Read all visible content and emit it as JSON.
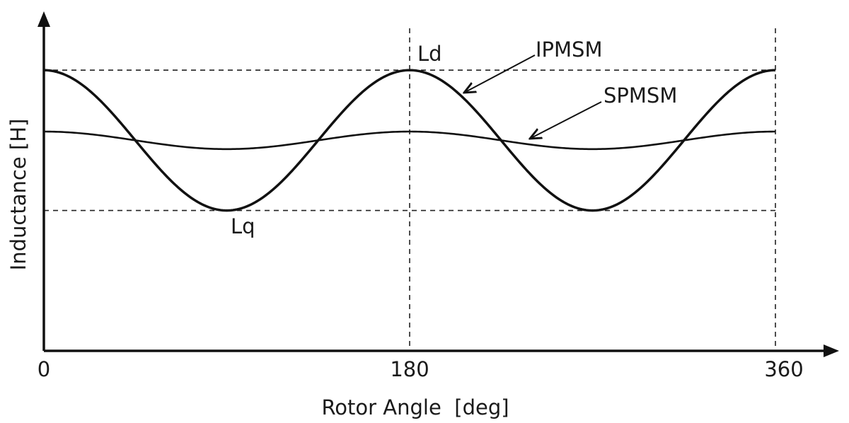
{
  "chart_data": {
    "type": "line",
    "title": "",
    "xlabel": "Rotor Angle  [deg]",
    "ylabel": "Inductance [H]",
    "xlim": [
      0,
      360
    ],
    "ylim": [
      0,
      1
    ],
    "xticks": [
      "0",
      "180",
      "360"
    ],
    "yticks": [],
    "grid": false,
    "series": [
      {
        "name": "IPMSM",
        "x": [
          0,
          15,
          30,
          45,
          60,
          75,
          90,
          105,
          120,
          135,
          150,
          165,
          180,
          195,
          210,
          225,
          240,
          255,
          270,
          285,
          300,
          315,
          330,
          345,
          360
        ],
        "values": [
          0.8,
          0.773,
          0.7,
          0.6,
          0.5,
          0.427,
          0.4,
          0.427,
          0.5,
          0.6,
          0.7,
          0.773,
          0.8,
          0.773,
          0.7,
          0.6,
          0.5,
          0.427,
          0.4,
          0.427,
          0.5,
          0.6,
          0.7,
          0.773,
          0.8
        ],
        "stroke_width": 3.5
      },
      {
        "name": "SPMSM",
        "x": [
          0,
          15,
          30,
          45,
          60,
          75,
          90,
          105,
          120,
          135,
          150,
          165,
          180,
          195,
          210,
          225,
          240,
          255,
          270,
          285,
          300,
          315,
          330,
          345,
          360
        ],
        "values": [
          0.625,
          0.622,
          0.613,
          0.6,
          0.587,
          0.578,
          0.575,
          0.578,
          0.587,
          0.6,
          0.613,
          0.622,
          0.625,
          0.622,
          0.613,
          0.6,
          0.587,
          0.578,
          0.575,
          0.578,
          0.587,
          0.6,
          0.613,
          0.622,
          0.625
        ],
        "stroke_width": 2.6
      }
    ],
    "reference_lines": {
      "horizontal": [
        {
          "y": 0.8,
          "style": "dashed"
        },
        {
          "y": 0.4,
          "style": "dashed"
        }
      ],
      "vertical": [
        {
          "x": 180,
          "style": "dashed"
        },
        {
          "x": 360,
          "style": "dashed"
        }
      ]
    },
    "annotations": [
      {
        "text": "Ld",
        "x": 180,
        "y": 0.8
      },
      {
        "text": "Lq",
        "x": 90,
        "y": 0.4
      },
      {
        "text": "IPMSM",
        "arrow_to": {
          "x": 205,
          "y": 0.74
        }
      },
      {
        "text": "SPMSM",
        "arrow_to": {
          "x": 240,
          "y": 0.605
        }
      }
    ]
  }
}
